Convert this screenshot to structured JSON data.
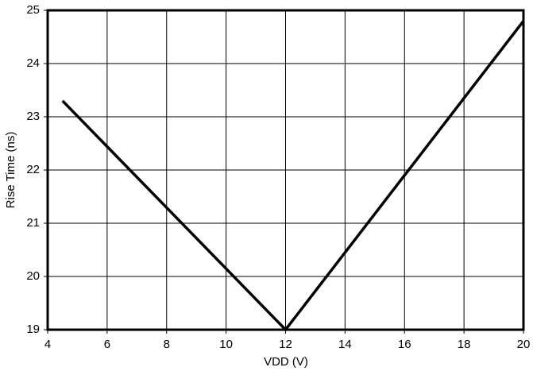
{
  "chart_data": {
    "type": "line",
    "x_label": "VDD (V)",
    "y_label": "Rise Time (ns)",
    "x": [
      4.5,
      12,
      20
    ],
    "series": [
      {
        "name": "Rise Time",
        "color": "#000000",
        "values": [
          23.3,
          19.0,
          24.8
        ]
      }
    ],
    "xlim": [
      4,
      20
    ],
    "xticks": [
      4,
      6,
      8,
      10,
      12,
      14,
      16,
      18,
      20
    ],
    "ylim": [
      19,
      25
    ],
    "yticks": [
      19,
      20,
      21,
      22,
      23,
      24,
      25
    ],
    "grid": true
  }
}
